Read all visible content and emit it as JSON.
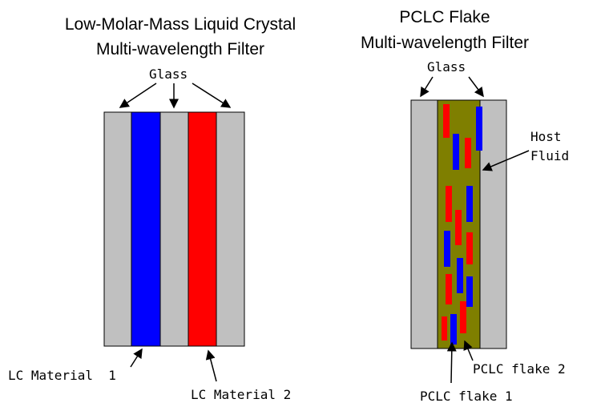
{
  "left": {
    "title": [
      "Low-Molar-Mass Liquid Crystal",
      "Multi-wavelength Filter"
    ],
    "glass_label": "Glass",
    "material_1_label": "LC Material  1",
    "material_2_label": "LC Material 2"
  },
  "right": {
    "title": [
      "PCLC Flake",
      "Multi-wavelength Filter"
    ],
    "glass_label": "Glass",
    "host_fluid_label": [
      "Host",
      "Fluid"
    ],
    "flake_2_label": "PCLC flake 2",
    "flake_1_label": "PCLC flake 1"
  }
}
